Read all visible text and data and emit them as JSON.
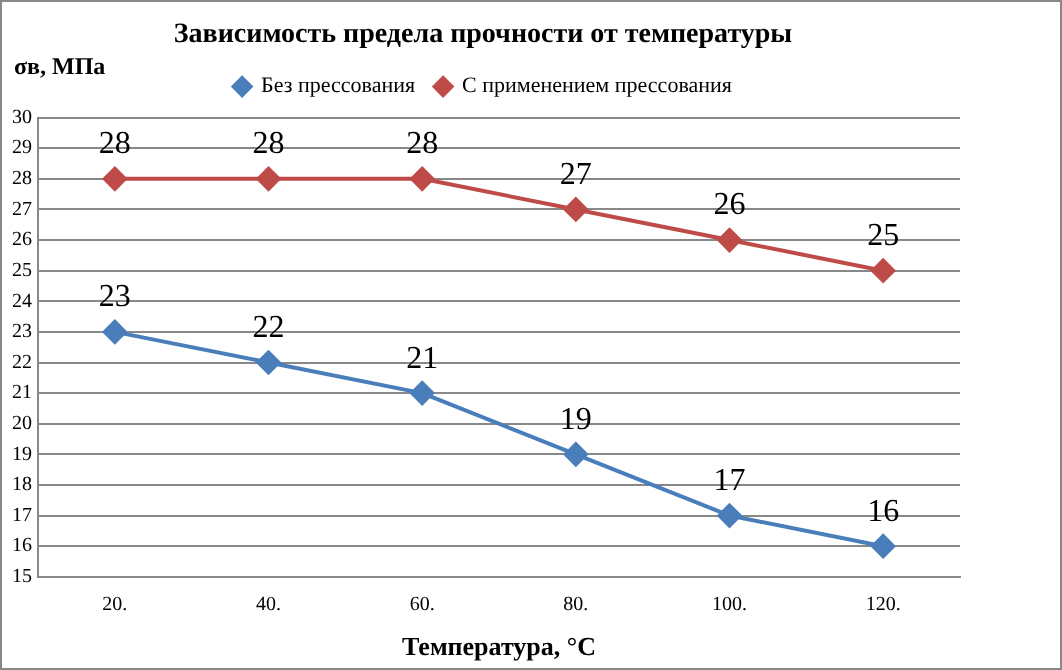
{
  "chart_data": {
    "type": "line",
    "title": "Зависимость предела прочности от температуры",
    "xlabel": "Температура, °С",
    "ylabel": "σв, МПа",
    "categories": [
      "20.",
      "40.",
      "60.",
      "80.",
      "100.",
      "120."
    ],
    "series": [
      {
        "name": "Без прессования",
        "color": "#4a7ebb",
        "values": [
          23,
          22,
          21,
          19,
          17,
          16
        ]
      },
      {
        "name": "С применением прессования",
        "color": "#be4b48",
        "values": [
          28,
          28,
          28,
          27,
          26,
          25
        ]
      }
    ],
    "ylim": [
      15,
      30
    ],
    "yticks": [
      15,
      16,
      17,
      18,
      19,
      20,
      21,
      22,
      23,
      24,
      25,
      26,
      27,
      28,
      29,
      30
    ],
    "grid": "y",
    "legend": "top",
    "marker": "diamond",
    "line_style": "solid",
    "data_labels": true
  }
}
